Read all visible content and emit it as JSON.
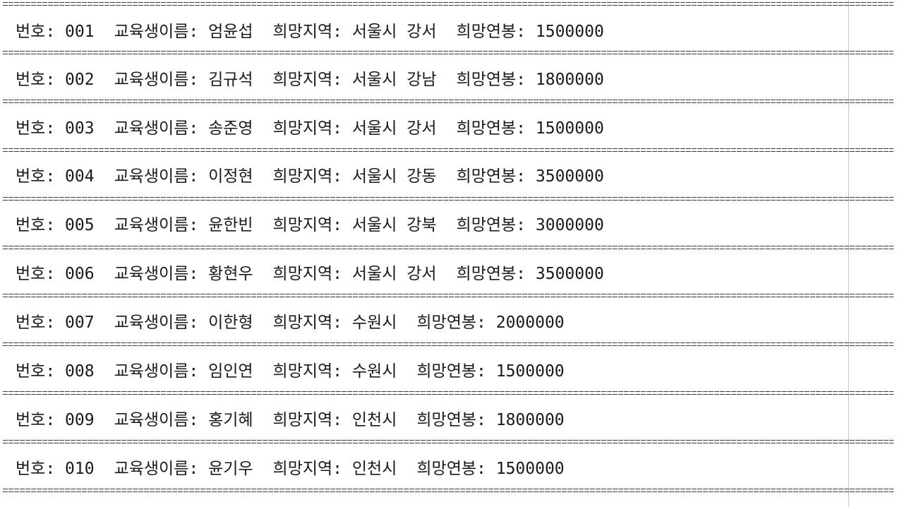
{
  "labels": {
    "number": "번호: ",
    "name": "교육생이름: ",
    "region": "희망지역: ",
    "salary": "희망연봉: "
  },
  "separator": "===============================================================================================================================================",
  "rows": [
    {
      "number": "001",
      "name": "엄윤섭",
      "region": "서울시 강서",
      "salary": "1500000"
    },
    {
      "number": "002",
      "name": "김규석",
      "region": "서울시 강남",
      "salary": "1800000"
    },
    {
      "number": "003",
      "name": "송준영",
      "region": "서울시 강서",
      "salary": "1500000"
    },
    {
      "number": "004",
      "name": "이정현",
      "region": "서울시 강동",
      "salary": "3500000"
    },
    {
      "number": "005",
      "name": "윤한빈",
      "region": "서울시 강북",
      "salary": "3000000"
    },
    {
      "number": "006",
      "name": "황현우",
      "region": "서울시 강서",
      "salary": "3500000"
    },
    {
      "number": "007",
      "name": "이한형",
      "region": "수원시",
      "salary": "2000000"
    },
    {
      "number": "008",
      "name": "임인연",
      "region": "수원시",
      "salary": "1500000"
    },
    {
      "number": "009",
      "name": "홍기혜",
      "region": "인천시",
      "salary": "1800000"
    },
    {
      "number": "010",
      "name": "윤기우",
      "region": "인천시",
      "salary": "1500000"
    }
  ]
}
